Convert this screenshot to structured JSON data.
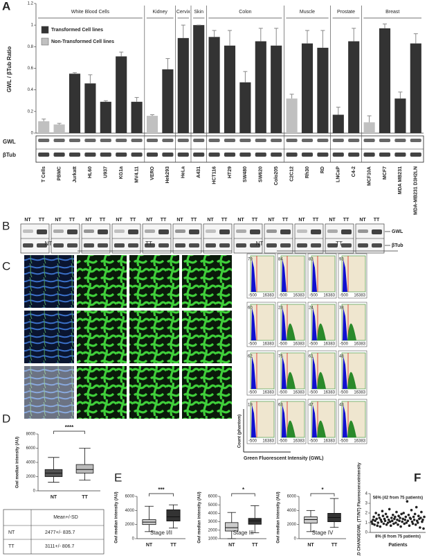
{
  "chart_data": [
    {
      "type": "bar",
      "label": "A",
      "ylabel": "GWL / βTub Ratio",
      "ylim": [
        0,
        1.2
      ],
      "yticks": [
        0,
        0.2,
        0.4,
        0.6,
        0.8,
        1,
        1.2
      ],
      "legend": [
        {
          "name": "Transformed Cell lines",
          "color": "#333333"
        },
        {
          "name": "Non-Transformed Cell lines",
          "color": "#c0c0c0"
        }
      ],
      "blot_labels": [
        "GWL",
        "βTub"
      ],
      "groups": [
        {
          "label": "White Blood Cells",
          "categories": [
            "T Cells",
            "PBMC",
            "Jurkatt",
            "HL60",
            "U937",
            "KG1a",
            "MV4.11"
          ],
          "values": [
            0.11,
            0.08,
            0.55,
            0.46,
            0.29,
            0.71,
            0.29
          ],
          "errors": [
            0.02,
            0.01,
            0.01,
            0.08,
            0.01,
            0.04,
            0.04
          ],
          "colors": [
            "#c0c0c0",
            "#c0c0c0",
            "#333333",
            "#333333",
            "#333333",
            "#333333",
            "#333333"
          ]
        },
        {
          "label": "Kidney",
          "categories": [
            "VERO",
            "Hek293"
          ],
          "values": [
            0.16,
            0.59
          ],
          "errors": [
            0.01,
            0.1
          ],
          "colors": [
            "#c0c0c0",
            "#333333"
          ]
        },
        {
          "label": "Cervix",
          "categories": [
            "HeLa"
          ],
          "values": [
            0.88
          ],
          "errors": [
            0.12
          ],
          "colors": [
            "#333333"
          ]
        },
        {
          "label": "Skin",
          "categories": [
            "A431"
          ],
          "values": [
            1.0
          ],
          "errors": [
            0
          ],
          "colors": [
            "#333333"
          ]
        },
        {
          "label": "Colon",
          "categories": [
            "HCT116",
            "HT29",
            "SW480",
            "SW620",
            "Colo205"
          ],
          "values": [
            0.89,
            0.81,
            0.47,
            0.85,
            0.81
          ],
          "errors": [
            0.06,
            0.14,
            0.1,
            0.12,
            0.16
          ],
          "colors": [
            "#333333",
            "#333333",
            "#333333",
            "#333333",
            "#333333"
          ]
        },
        {
          "label": "Muscle",
          "categories": [
            "C2C12",
            "Rh30",
            "RD"
          ],
          "values": [
            0.32,
            0.83,
            0.79
          ],
          "errors": [
            0.04,
            0.12,
            0.16
          ],
          "colors": [
            "#c0c0c0",
            "#333333",
            "#333333"
          ]
        },
        {
          "label": "Prostate",
          "categories": [
            "LNCaP",
            "C4-2"
          ],
          "values": [
            0.17,
            0.85
          ],
          "errors": [
            0.07,
            0.12
          ],
          "colors": [
            "#333333",
            "#333333"
          ]
        },
        {
          "label": "Breast",
          "categories": [
            "MCF10A",
            "MCF7",
            "MDA MB231",
            "MDA-MB231 D3H2LN"
          ],
          "values": [
            0.1,
            0.97,
            0.32,
            0.83
          ],
          "errors": [
            0.06,
            0.04,
            0.06,
            0.09
          ],
          "colors": [
            "#c0c0c0",
            "#333333",
            "#333333",
            "#333333"
          ]
        }
      ]
    },
    {
      "type": "box",
      "label": "D",
      "ylabel": "Gwl median intensity (AU)",
      "ylim": [
        0,
        8000
      ],
      "yticks": [
        0,
        2000,
        4000,
        6000,
        8000
      ],
      "categories": [
        "NT",
        "TT"
      ],
      "colors": [
        "#555555",
        "#bbbbbb"
      ],
      "significance": "****",
      "boxes": [
        {
          "min": 1200,
          "q1": 2000,
          "median": 2500,
          "q3": 3000,
          "max": 4700
        },
        {
          "min": 1500,
          "q1": 2500,
          "median": 3000,
          "q3": 3700,
          "max": 6000
        }
      ]
    },
    {
      "type": "box",
      "label": "E",
      "subtitle": "Stage I/II",
      "ylabel": "Gwl median intensity (AU)",
      "ylim": [
        0,
        6000
      ],
      "yticks": [
        0,
        2000,
        4000,
        6000
      ],
      "categories": [
        "NT",
        "TT"
      ],
      "colors": [
        "#cccccc",
        "#333333"
      ],
      "significance": "***",
      "boxes": [
        {
          "min": 1000,
          "q1": 2000,
          "median": 2350,
          "q3": 2700,
          "max": 4600
        },
        {
          "min": 1500,
          "q1": 2500,
          "median": 3100,
          "q3": 4100,
          "max": 4800
        }
      ]
    },
    {
      "type": "box",
      "subtitle": "Stage III",
      "ylabel": "Gwl median intensity (AU)",
      "ylim": [
        1000,
        6000
      ],
      "yticks": [
        1000,
        2000,
        3000,
        4000,
        5000,
        6000
      ],
      "categories": [
        "NT",
        "TT"
      ],
      "colors": [
        "#cccccc",
        "#333333"
      ],
      "significance": "*",
      "boxes": [
        {
          "min": 1000,
          "q1": 1900,
          "median": 2300,
          "q3": 2900,
          "max": 4100
        },
        {
          "min": 1700,
          "q1": 2700,
          "median": 3100,
          "q3": 3400,
          "max": 4900
        }
      ]
    },
    {
      "type": "box",
      "subtitle": "Stage IV",
      "ylabel": "Gwl median intensity (AU)",
      "ylim": [
        0,
        6000
      ],
      "yticks": [
        0,
        2000,
        4000,
        6000
      ],
      "categories": [
        "NT",
        "TT"
      ],
      "colors": [
        "#cccccc",
        "#333333"
      ],
      "significance": "*",
      "boxes": [
        {
          "min": 1000,
          "q1": 2200,
          "median": 2700,
          "q3": 3100,
          "max": 4000
        },
        {
          "min": 1600,
          "q1": 2400,
          "median": 3000,
          "q3": 3600,
          "max": 5700
        }
      ]
    },
    {
      "type": "scatter",
      "label": "F",
      "ylabel": "FOLD CHANGEGWL (TT/NT) Fluorescenceintensity",
      "xlabel": "Patients",
      "ylim": [
        0,
        4
      ],
      "yticks": [
        0,
        1,
        2,
        3,
        4
      ],
      "color": "#222222",
      "annotations": [
        "56% (42 from 75 patients)",
        "8% (6 from 75 patients)"
      ],
      "values": [
        1.1,
        0.9,
        1.3,
        1.6,
        0.8,
        1.2,
        2.0,
        1.4,
        0.7,
        1.0,
        1.8,
        1.5,
        0.6,
        1.3,
        1.1,
        2.2,
        1.7,
        0.9,
        1.4,
        1.2,
        1.9,
        0.8,
        1.6,
        1.0,
        1.3,
        2.4,
        1.1,
        0.7,
        1.5,
        1.2,
        1.8,
        0.9,
        1.4,
        1.6,
        1.0,
        2.1,
        1.3,
        0.8,
        1.7,
        1.2,
        1.5,
        0.6,
        1.9,
        1.1,
        1.4,
        2.0,
        0.9,
        1.3,
        1.6,
        1.0,
        3.2,
        1.2,
        1.8,
        0.7,
        1.5,
        1.4,
        2.3,
        1.1,
        0.9,
        1.6,
        1.3,
        1.9,
        0.8,
        2.6,
        1.2,
        1.0,
        1.7,
        1.4,
        0.5,
        1.5,
        2.1,
        1.1,
        1.3,
        0.4,
        1.6
      ]
    }
  ],
  "panel_b": {
    "label": "B",
    "lanes": [
      "NT",
      "TT"
    ],
    "bands": [
      "GWL",
      "βTub"
    ]
  },
  "panel_c": {
    "label": "C",
    "groups": [
      "NT",
      "TT"
    ],
    "histogram_counts": [
      [
        "79",
        "84",
        "83",
        "93"
      ],
      [
        "60",
        "23",
        "24",
        "38"
      ],
      [
        "62",
        "76",
        "61",
        "48"
      ],
      [
        "19",
        "63",
        "47",
        "43"
      ]
    ],
    "histogram_axis": [
      "-500",
      "16383"
    ],
    "ylabel": "Count (phantom)",
    "xlabel": "Green Fluorescent Intensity (GWL)"
  },
  "table_d": {
    "header": "Mean+/-SD",
    "rows": [
      [
        "NT",
        "2477+/- 835.7"
      ],
      [
        "TT",
        "3111+/- 806.7"
      ]
    ]
  }
}
